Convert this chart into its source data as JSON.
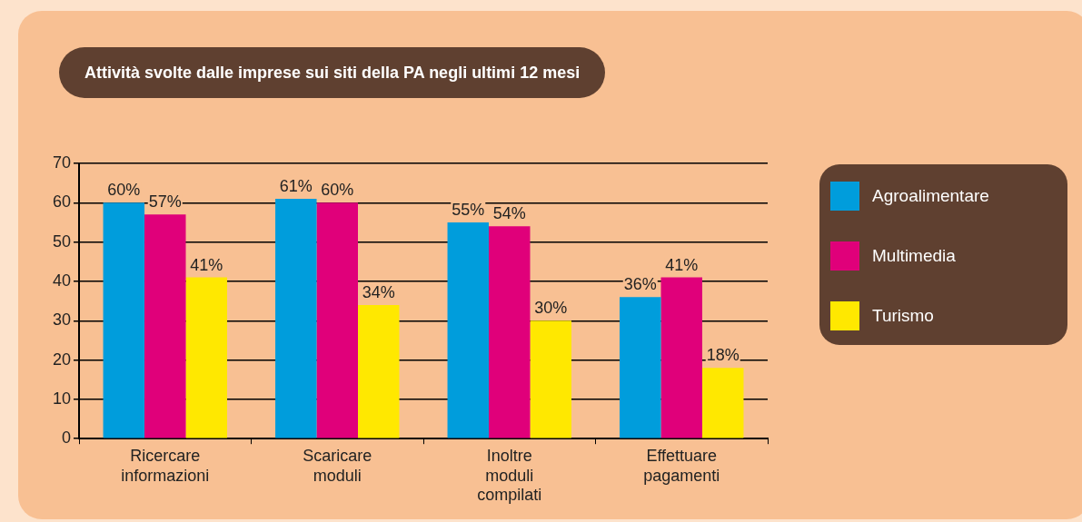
{
  "chart_data": {
    "type": "bar",
    "title": "Attività svolte dalle imprese sui siti della PA negli ultimi 12 mesi",
    "categories": [
      [
        "Ricercare",
        "informazioni"
      ],
      [
        "Scaricare",
        "moduli"
      ],
      [
        "Inoltre",
        "moduli",
        "compilati"
      ],
      [
        "Effettuare",
        "pagamenti"
      ]
    ],
    "series": [
      {
        "name": "Agroalimentare",
        "color": "#009ddc",
        "values": [
          60,
          61,
          55,
          36
        ],
        "value_labels": [
          "60%",
          "61%",
          "55%",
          "36%"
        ]
      },
      {
        "name": "Multimedia",
        "color": "#e0007a",
        "values": [
          57,
          60,
          54,
          41
        ],
        "value_labels": [
          "57%",
          "60%",
          "54%",
          "41%"
        ]
      },
      {
        "name": "Turismo",
        "color": "#ffe800",
        "values": [
          41,
          34,
          30,
          18
        ],
        "value_labels": [
          "41%",
          "34%",
          "30%",
          "18%"
        ]
      }
    ],
    "ylim": [
      0,
      70
    ],
    "yticks": [
      0,
      10,
      20,
      30,
      40,
      50,
      60,
      70
    ],
    "grid": "y",
    "legend": "right"
  }
}
